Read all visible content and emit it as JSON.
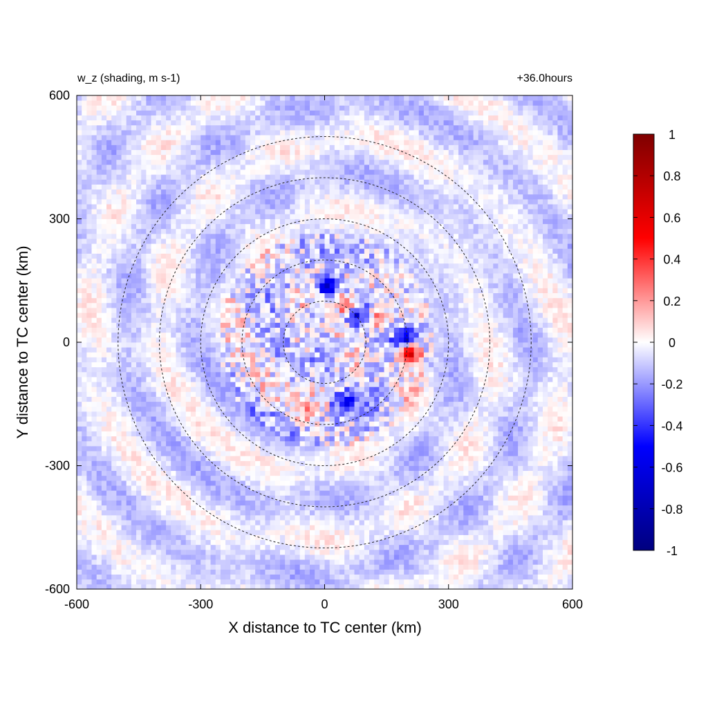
{
  "chart_data": {
    "type": "heatmap",
    "title_left": "w_z (shading, m s-1)",
    "title_right": "+36.0hours",
    "xlabel": "X distance to TC center (km)",
    "ylabel": "Y distance to TC center (km)",
    "xlim": [
      -600,
      600
    ],
    "ylim": [
      -600,
      600
    ],
    "xticks": [
      "-600",
      "-300",
      "0",
      "300",
      "600"
    ],
    "yticks": [
      "600",
      "300",
      "0",
      "-300",
      "-600"
    ],
    "xtick_values": [
      -600,
      -300,
      0,
      300,
      600
    ],
    "ytick_values": [
      600,
      300,
      0,
      -300,
      -600
    ],
    "rings_km": [
      100,
      200,
      300,
      400,
      500
    ],
    "ring_style": "dashed black",
    "colorbar": {
      "min": -1,
      "max": 1,
      "tick_labels": [
        "1",
        "0.8",
        "0.6",
        "0.4",
        "0.2",
        "0",
        "-0.2",
        "-0.4",
        "-0.6",
        "-0.8",
        "-1"
      ],
      "tick_values": [
        1,
        0.8,
        0.6,
        0.4,
        0.2,
        0,
        -0.2,
        -0.4,
        -0.6,
        -0.8,
        -1
      ],
      "colormap": [
        "#00007f",
        "#0000ff",
        "#ffffff",
        "#ff0000",
        "#7f0000"
      ]
    },
    "features": [
      {
        "x": 0,
        "y": 130,
        "value": -0.7
      },
      {
        "x": 50,
        "y": 80,
        "value": 0.5
      },
      {
        "x": 70,
        "y": 60,
        "value": -0.6
      },
      {
        "x": 120,
        "y": 50,
        "value": 0.4
      },
      {
        "x": 190,
        "y": 0,
        "value": -0.7
      },
      {
        "x": 195,
        "y": -30,
        "value": 0.8
      },
      {
        "x": 40,
        "y": -150,
        "value": -0.5
      },
      {
        "x": -50,
        "y": -180,
        "value": 0.3
      }
    ]
  }
}
